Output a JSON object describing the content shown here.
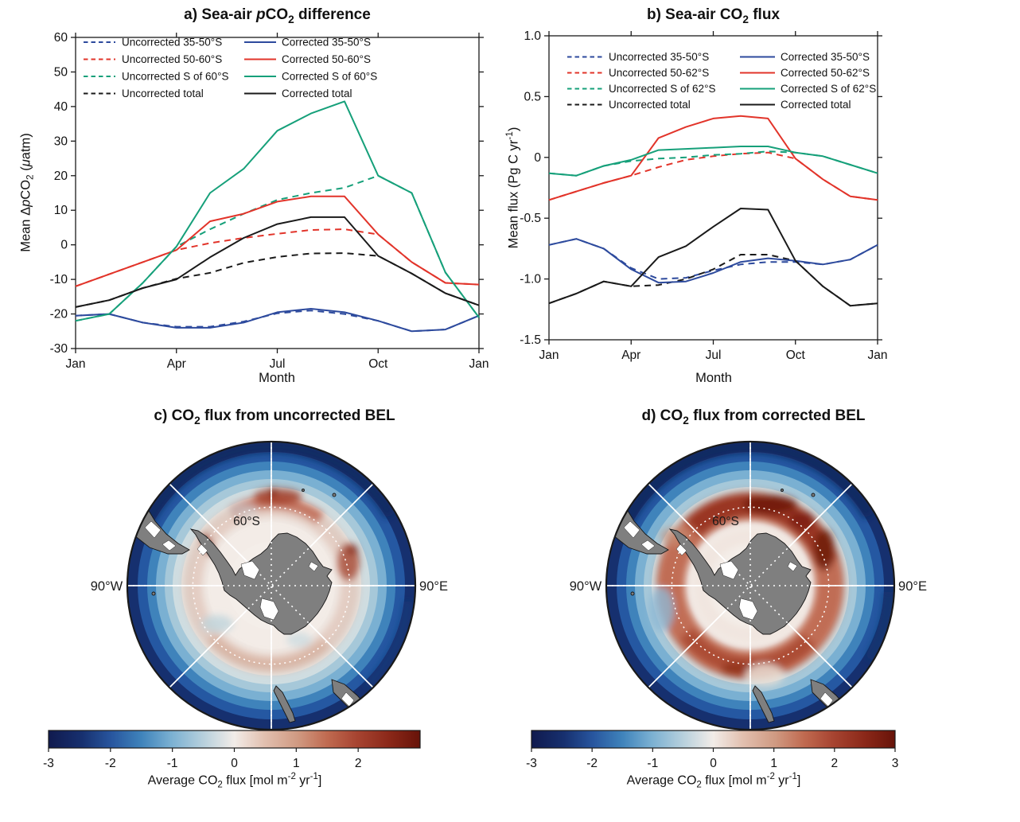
{
  "figure_title": "Sea-air pCO2 and CO2 flux, uncorrected vs corrected BEL",
  "rich": {
    "title_a": [
      {
        "t": "a) Sea-air "
      },
      {
        "i": "p"
      },
      {
        "t": "CO"
      },
      {
        "sub": "2"
      },
      {
        "t": " difference"
      }
    ],
    "title_b": [
      {
        "t": "b) Sea-air CO"
      },
      {
        "sub": "2"
      },
      {
        "t": " flux"
      }
    ],
    "title_c": [
      {
        "t": "c) CO"
      },
      {
        "sub": "2"
      },
      {
        "t": " flux from uncorrected BEL"
      }
    ],
    "title_d": [
      {
        "t": "d) CO"
      },
      {
        "sub": "2"
      },
      {
        "t": " flux from corrected BEL"
      }
    ],
    "ylabel_a": [
      {
        "t": "Mean Δ"
      },
      {
        "i": "p"
      },
      {
        "t": "CO"
      },
      {
        "sub": "2"
      },
      {
        "t": " ("
      },
      {
        "i": "μ"
      },
      {
        "t": "atm)"
      }
    ],
    "ylabel_b": [
      {
        "t": "Mean flux (Pg C yr"
      },
      {
        "sup": "-1"
      },
      {
        "t": ")"
      }
    ],
    "cbar_label": [
      {
        "t": "Average CO"
      },
      {
        "sub": "2"
      },
      {
        "t": " flux [mol m"
      },
      {
        "sup": "-2"
      },
      {
        "t": " yr"
      },
      {
        "sup": "-1"
      },
      {
        "t": "]"
      }
    ]
  },
  "chart_data": [
    {
      "id": "a",
      "type": "line",
      "title": "a) Sea-air pCO2 difference",
      "xlabel": "Month",
      "ylabel": "Mean ΔpCO2 (μatm)",
      "categories": [
        "Jan",
        "Feb",
        "Mar",
        "Apr",
        "May",
        "Jun",
        "Jul",
        "Aug",
        "Sep",
        "Oct",
        "Nov",
        "Dec",
        "Jan"
      ],
      "xlim": [
        1,
        13
      ],
      "ylim": [
        -30,
        60
      ],
      "xticks": [
        {
          "v": 1,
          "label": "Jan"
        },
        {
          "v": 4,
          "label": "Apr"
        },
        {
          "v": 7,
          "label": "Jul"
        },
        {
          "v": 10,
          "label": "Oct"
        },
        {
          "v": 13,
          "label": "Jan"
        }
      ],
      "yticks": [
        {
          "v": 60,
          "label": "60"
        },
        {
          "v": 50,
          "label": "50"
        },
        {
          "v": 40,
          "label": "40"
        },
        {
          "v": 30,
          "label": "30"
        },
        {
          "v": 20,
          "label": "20"
        },
        {
          "v": 10,
          "label": "10"
        },
        {
          "v": 0,
          "label": "0"
        },
        {
          "v": -10,
          "label": "-10"
        },
        {
          "v": -20,
          "label": "-20"
        },
        {
          "v": -30,
          "label": "-30"
        }
      ],
      "legend_position": "top-left, two columns, no box",
      "series": [
        {
          "name": "Uncorrected 35-50°S",
          "style": "dashed",
          "color": "#2d4a9d",
          "values": [
            -20.5,
            -20,
            -22.5,
            -23.7,
            -23.7,
            -22.2,
            -19.8,
            -19,
            -20,
            -22,
            -25,
            -24.5,
            -20.5
          ]
        },
        {
          "name": "Uncorrected 50-60°S",
          "style": "dashed",
          "color": "#e2342a",
          "values": [
            -12,
            -8.5,
            -5,
            -1.5,
            0.5,
            2,
            3.2,
            4.3,
            4.5,
            3,
            -5,
            -11,
            -11.5
          ]
        },
        {
          "name": "Uncorrected S of 60°S",
          "style": "dashed",
          "color": "#16a07a",
          "values": [
            -22,
            -20,
            -11,
            -0.5,
            4.5,
            9,
            13,
            15,
            16.5,
            20,
            15,
            -8,
            -21
          ]
        },
        {
          "name": "Uncorrected total",
          "style": "dashed",
          "color": "#1a1a1a",
          "values": [
            -18,
            -16,
            -12.5,
            -9.8,
            -8.1,
            -5.2,
            -3.5,
            -2.5,
            -2.4,
            -3.2,
            -8.3,
            -14,
            -17.5
          ]
        },
        {
          "name": "Corrected 35-50°S",
          "style": "solid",
          "color": "#2d4a9d",
          "values": [
            -20.5,
            -20,
            -22.5,
            -24,
            -24,
            -22.5,
            -19.5,
            -18.5,
            -19.5,
            -22,
            -25,
            -24.5,
            -20.5
          ]
        },
        {
          "name": "Corrected 50-60°S",
          "style": "solid",
          "color": "#e2342a",
          "values": [
            -12,
            -8.5,
            -5,
            -1.5,
            6.8,
            9,
            12.5,
            14,
            14,
            3,
            -5,
            -11,
            -11.5
          ]
        },
        {
          "name": "Corrected S of 60°S",
          "style": "solid",
          "color": "#16a07a",
          "values": [
            -22,
            -20,
            -11,
            -0.5,
            15,
            22,
            33,
            38,
            41.5,
            20,
            15,
            -8,
            -21
          ]
        },
        {
          "name": "Corrected total",
          "style": "solid",
          "color": "#1a1a1a",
          "values": [
            -18,
            -16,
            -12.5,
            -10,
            -3.6,
            2,
            6,
            8,
            8,
            -3.2,
            -8.3,
            -14,
            -17.5
          ]
        }
      ]
    },
    {
      "id": "b",
      "type": "line",
      "title": "b) Sea-air CO2 flux",
      "xlabel": "Month",
      "ylabel": "Mean flux (Pg C yr-1)",
      "categories": [
        "Jan",
        "Feb",
        "Mar",
        "Apr",
        "May",
        "Jun",
        "Jul",
        "Aug",
        "Sep",
        "Oct",
        "Nov",
        "Dec",
        "Jan"
      ],
      "xlim": [
        1,
        13
      ],
      "ylim": [
        -1.5,
        1.0
      ],
      "xticks": [
        {
          "v": 1,
          "label": "Jan"
        },
        {
          "v": 4,
          "label": "Apr"
        },
        {
          "v": 7,
          "label": "Jul"
        },
        {
          "v": 10,
          "label": "Oct"
        },
        {
          "v": 13,
          "label": "Jan"
        }
      ],
      "yticks": [
        {
          "v": 1.0,
          "label": "1.0"
        },
        {
          "v": 0.5,
          "label": "0.5"
        },
        {
          "v": 0,
          "label": "0"
        },
        {
          "v": -0.5,
          "label": "-0.5"
        },
        {
          "v": -1.0,
          "label": "-1.0"
        },
        {
          "v": -1.5,
          "label": "-1.5"
        }
      ],
      "legend_position": "top, two columns, no box",
      "series": [
        {
          "name": "Uncorrected 35-50°S",
          "style": "dashed",
          "color": "#2d4a9d",
          "values": [
            -0.72,
            -0.67,
            -0.75,
            -0.91,
            -1.0,
            -0.99,
            -0.93,
            -0.88,
            -0.86,
            -0.86,
            -0.88,
            -0.84,
            -0.72
          ]
        },
        {
          "name": "Uncorrected 50-62°S",
          "style": "dashed",
          "color": "#e2342a",
          "values": [
            -0.35,
            -0.28,
            -0.21,
            -0.15,
            -0.08,
            -0.02,
            0.01,
            0.03,
            0.04,
            -0.01,
            -0.18,
            -0.32,
            -0.35
          ]
        },
        {
          "name": "Uncorrected S of 62°S",
          "style": "dashed",
          "color": "#16a07a",
          "values": [
            -0.13,
            -0.15,
            -0.07,
            -0.03,
            -0.01,
            0.0,
            0.02,
            0.03,
            0.05,
            0.04,
            0.01,
            -0.06,
            -0.13
          ]
        },
        {
          "name": "Uncorrected total",
          "style": "dashed",
          "color": "#1a1a1a",
          "values": [
            -1.2,
            -1.12,
            -1.02,
            -1.06,
            -1.05,
            -1.0,
            -0.92,
            -0.8,
            -0.8,
            -0.85,
            -1.06,
            -1.22,
            -1.2
          ]
        },
        {
          "name": "Corrected 35-50°S",
          "style": "solid",
          "color": "#2d4a9d",
          "values": [
            -0.72,
            -0.67,
            -0.75,
            -0.92,
            -1.03,
            -1.02,
            -0.95,
            -0.86,
            -0.83,
            -0.85,
            -0.88,
            -0.84,
            -0.72
          ]
        },
        {
          "name": "Corrected 50-62°S",
          "style": "solid",
          "color": "#e2342a",
          "values": [
            -0.35,
            -0.28,
            -0.21,
            -0.15,
            0.16,
            0.25,
            0.32,
            0.34,
            0.32,
            -0.01,
            -0.18,
            -0.32,
            -0.35
          ]
        },
        {
          "name": "Corrected S of 62°S",
          "style": "solid",
          "color": "#16a07a",
          "values": [
            -0.13,
            -0.15,
            -0.07,
            -0.02,
            0.06,
            0.07,
            0.08,
            0.09,
            0.09,
            0.04,
            0.01,
            -0.06,
            -0.13
          ]
        },
        {
          "name": "Corrected total",
          "style": "solid",
          "color": "#1a1a1a",
          "values": [
            -1.2,
            -1.12,
            -1.02,
            -1.06,
            -0.82,
            -0.73,
            -0.57,
            -0.42,
            -0.43,
            -0.85,
            -1.06,
            -1.22,
            -1.2
          ]
        }
      ]
    }
  ],
  "maps": {
    "c": {
      "title": "c) CO2 flux from uncorrected BEL",
      "parallel_label": "60°S",
      "west_label": "90°W",
      "east_label": "90°E",
      "land_color": "#7f7f7f",
      "description": "South-polar stereographic map; strong CO2 uptake (blue) at northern edge, weak patchy outgassing (red) near 60°S"
    },
    "d": {
      "title": "d) CO2 flux from corrected BEL",
      "parallel_label": "60°S",
      "west_label": "90°W",
      "east_label": "90°E",
      "land_color": "#7f7f7f",
      "description": "South-polar stereographic map; strong red outgassing ring around 55-65°S, deep blue uptake at northern edge"
    }
  },
  "colorbars": [
    {
      "id": "c",
      "range": [
        -3,
        3
      ],
      "ticks": [
        {
          "v": -3,
          "label": "-3"
        },
        {
          "v": -2,
          "label": "-2"
        },
        {
          "v": -1,
          "label": "-1"
        },
        {
          "v": 0,
          "label": "0"
        },
        {
          "v": 1,
          "label": "1"
        },
        {
          "v": 2,
          "label": "2"
        }
      ],
      "label": "Average CO2 flux [mol m-2 yr-1]"
    },
    {
      "id": "d",
      "range": [
        -3,
        3
      ],
      "ticks": [
        {
          "v": -3,
          "label": "-3"
        },
        {
          "v": -2,
          "label": "-2"
        },
        {
          "v": -1,
          "label": "-1"
        },
        {
          "v": 0,
          "label": "0"
        },
        {
          "v": 1,
          "label": "1"
        },
        {
          "v": 2,
          "label": "2"
        },
        {
          "v": 3,
          "label": "3"
        }
      ],
      "label": "Average CO2 flux [mol m-2 yr-1]"
    }
  ],
  "colormap": {
    "name": "blue-white-red balance",
    "stops": [
      {
        "p": 0.0,
        "c": "#101a4e"
      },
      {
        "p": 0.09,
        "c": "#17306f"
      },
      {
        "p": 0.17,
        "c": "#28569f"
      },
      {
        "p": 0.25,
        "c": "#3f83bb"
      },
      {
        "p": 0.33,
        "c": "#7ab0d2"
      },
      {
        "p": 0.42,
        "c": "#b9d1dd"
      },
      {
        "p": 0.5,
        "c": "#f2ece8"
      },
      {
        "p": 0.58,
        "c": "#e2c0b0"
      },
      {
        "p": 0.67,
        "c": "#d09a82"
      },
      {
        "p": 0.75,
        "c": "#c06a50"
      },
      {
        "p": 0.83,
        "c": "#a74431"
      },
      {
        "p": 0.92,
        "c": "#8a2718"
      },
      {
        "p": 1.0,
        "c": "#671309"
      }
    ]
  },
  "series_colors": {
    "blue_35_50S": "#2d4a9d",
    "red_50_60S": "#e2342a",
    "green_S_of_60S": "#16a07a",
    "black_total": "#1a1a1a"
  }
}
